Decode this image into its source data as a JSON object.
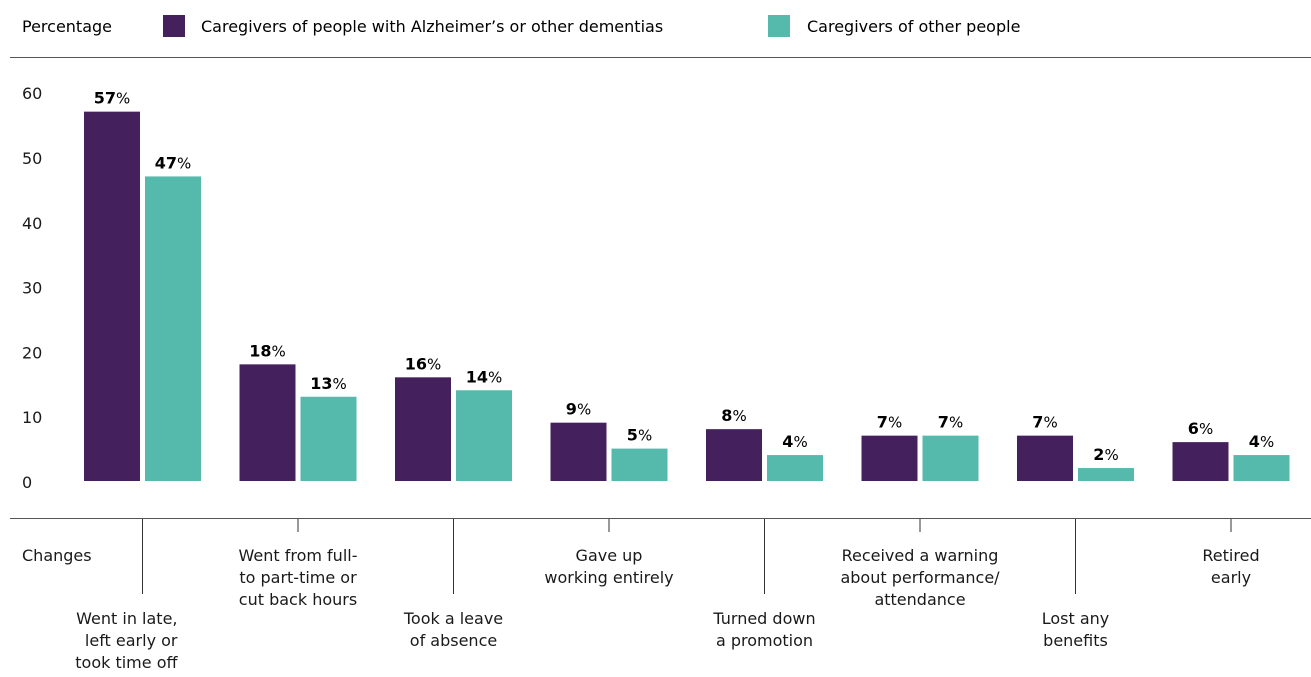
{
  "legend": {
    "label": "Percentage",
    "series": [
      {
        "name": "Caregivers of people with Alzheimer’s or other dementias",
        "color": "#44205c"
      },
      {
        "name": "Caregivers of other people",
        "color": "#55b9ac"
      }
    ]
  },
  "category_header": "Changes",
  "chart_data": {
    "type": "bar",
    "ylabel": "Percentage",
    "ylim": [
      0,
      60
    ],
    "yticks": [
      0,
      10,
      20,
      30,
      40,
      50,
      60
    ],
    "grid": false,
    "legend_position": "top",
    "categories": [
      "Went in late, left early or took time off",
      "Went from full-to part-time or cut back hours",
      "Took a leave of absence",
      "Gave up working entirely",
      "Turned down a promotion",
      "Received a warning about performance/attendance",
      "Lost any benefits",
      "Retired early"
    ],
    "category_label_lines": [
      [
        "Went in late,",
        "left early or",
        "took time off"
      ],
      [
        "Went from full-",
        "to part-time or",
        "cut back hours"
      ],
      [
        "Took a leave",
        "of absence"
      ],
      [
        "Gave up",
        "working entirely"
      ],
      [
        "Turned down",
        "a promotion"
      ],
      [
        "Received a warning",
        "about performance/",
        "attendance"
      ],
      [
        "Lost any",
        "benefits"
      ],
      [
        "Retired",
        "early"
      ]
    ],
    "series": [
      {
        "name": "Caregivers of people with Alzheimer’s or other dementias",
        "color": "#44205c",
        "values": [
          57,
          18,
          16,
          9,
          8,
          7,
          7,
          6
        ]
      },
      {
        "name": "Caregivers of other people",
        "color": "#55b9ac",
        "values": [
          47,
          13,
          14,
          5,
          4,
          7,
          2,
          4
        ]
      }
    ],
    "value_suffix": "%"
  }
}
